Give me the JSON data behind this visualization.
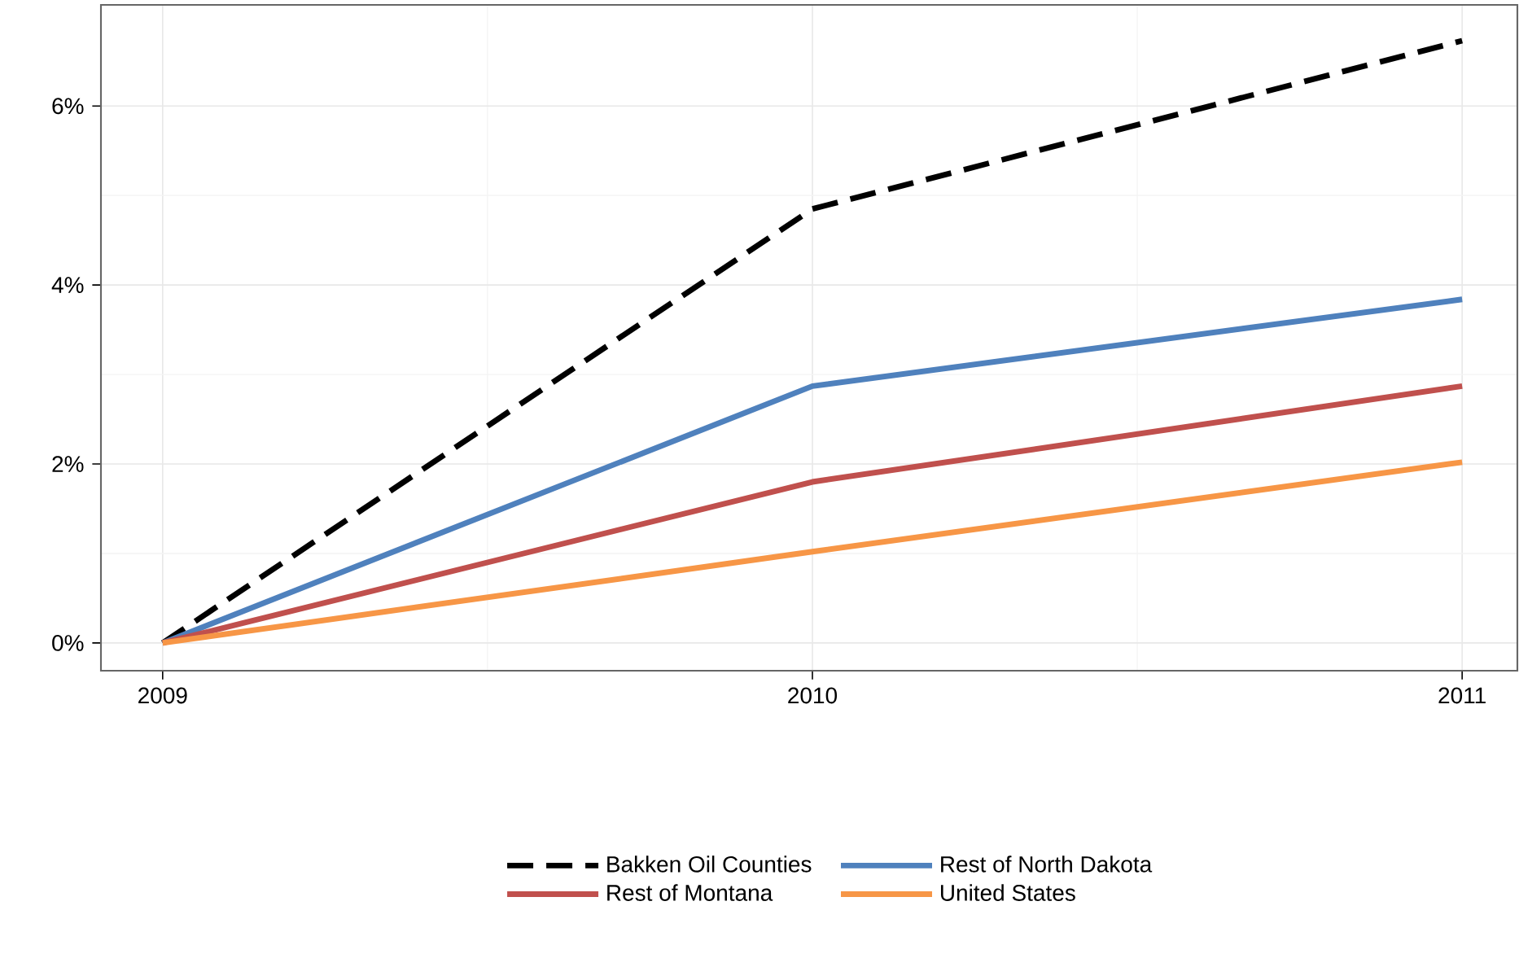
{
  "chart_data": {
    "type": "line",
    "x": [
      2009,
      2010,
      2011
    ],
    "xlim": [
      2008.905,
      2011.085
    ],
    "xticks": [
      2009,
      2010,
      2011
    ],
    "ylim": [
      -0.31,
      7.13
    ],
    "yticks": [
      {
        "value": 0,
        "label": "0%"
      },
      {
        "value": 2,
        "label": "2%"
      },
      {
        "value": 4,
        "label": "4%"
      },
      {
        "value": 6,
        "label": "6%"
      }
    ],
    "grid": true,
    "legend": "bottom",
    "marker": "none",
    "series": [
      {
        "name": "Bakken Oil Counties",
        "color": "#000000",
        "line_style": "dashed",
        "values": [
          0,
          4.85,
          6.73
        ]
      },
      {
        "name": "Rest of North Dakota",
        "color": "#4f81bd",
        "line_style": "solid",
        "values": [
          0,
          2.87,
          3.84
        ]
      },
      {
        "name": "Rest of Montana",
        "color": "#c0504d",
        "line_style": "solid",
        "values": [
          0,
          1.8,
          2.87
        ]
      },
      {
        "name": "United States",
        "color": "#f79646",
        "line_style": "solid",
        "values": [
          0,
          1.02,
          2.02
        ]
      }
    ]
  }
}
